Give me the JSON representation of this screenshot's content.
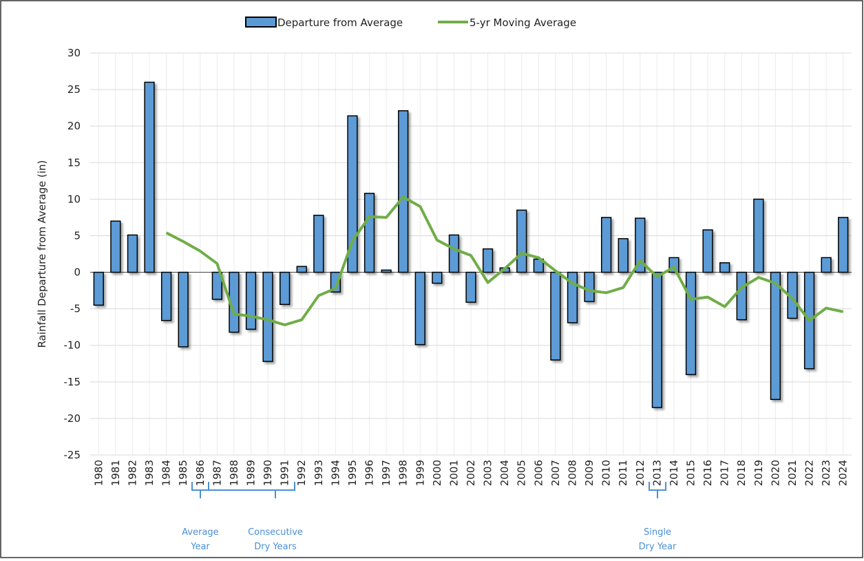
{
  "chart_data": {
    "type": "bar-line",
    "y_label": "Rainfall Departure from Average (in)",
    "categories": [
      "1980",
      "1981",
      "1982",
      "1983",
      "1984",
      "1985",
      "1986",
      "1987",
      "1988",
      "1989",
      "1990",
      "1991",
      "1992",
      "1993",
      "1994",
      "1995",
      "1996",
      "1997",
      "1998",
      "1999",
      "2000",
      "2001",
      "2002",
      "2003",
      "2004",
      "2005",
      "2006",
      "2007",
      "2008",
      "2009",
      "2010",
      "2011",
      "2012",
      "2013",
      "2014",
      "2015",
      "2016",
      "2017",
      "2018",
      "2019",
      "2020",
      "2021",
      "2022",
      "2023",
      "2024"
    ],
    "series": [
      {
        "name": "Departure from Average",
        "type": "bar",
        "color": "#5b9bd5",
        "values": [
          -4.5,
          7,
          5.1,
          26,
          -6.6,
          -10.2,
          0,
          -3.7,
          -8.2,
          -7.8,
          -12.2,
          -4.4,
          0.8,
          7.8,
          -2.7,
          21.4,
          10.8,
          0.3,
          22.1,
          -9.9,
          -1.5,
          5.1,
          -4.1,
          3.2,
          0.6,
          8.5,
          1.8,
          -12,
          -6.9,
          -4,
          7.5,
          4.6,
          7.4,
          -18.5,
          2,
          -14,
          5.8,
          1.3,
          -6.5,
          10,
          -17.4,
          -6.3,
          -13.2,
          2,
          7.5
        ]
      },
      {
        "name": "5-yr Moving Average",
        "type": "line",
        "color": "#70ad47",
        "values": [
          null,
          null,
          null,
          null,
          5.4,
          4.2,
          2.9,
          1.2,
          -5.7,
          -6,
          -6.5,
          -7.2,
          -6.5,
          -3.2,
          -2.2,
          4.3,
          7.6,
          7.5,
          10.3,
          9,
          4.4,
          3.2,
          2.3,
          -1.4,
          0.5,
          2.6,
          2,
          0.2,
          -1.5,
          -2.5,
          -2.8,
          -2.1,
          1.6,
          -0.6,
          0.7,
          -3.7,
          -3.4,
          -4.7,
          -2.1,
          -0.7,
          -1.5,
          -3.6,
          -6.6,
          -4.9,
          -5.4
        ]
      }
    ],
    "ylim": [
      -25,
      30
    ],
    "yticks": [
      -25,
      -20,
      -15,
      -10,
      -5,
      0,
      5,
      10,
      15,
      20,
      25,
      30
    ],
    "grid": true,
    "legend": "top",
    "annotations": [
      {
        "lines": [
          "Average",
          "Year"
        ]
      },
      {
        "lines": [
          "Consecutive",
          "Dry Years"
        ]
      },
      {
        "lines": [
          "Single",
          "Dry Year"
        ]
      }
    ]
  }
}
